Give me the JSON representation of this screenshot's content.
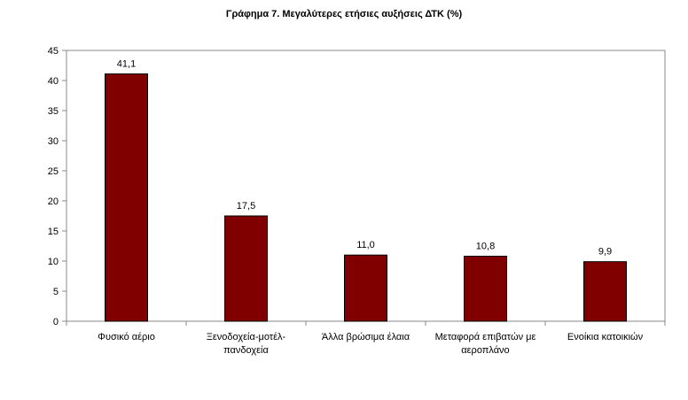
{
  "chart_data": {
    "type": "bar",
    "title": "Γράφημα 7. Μεγαλύτερες ετήσιες αυξήσεις ΔΤΚ (%)",
    "categories": [
      [
        "Φυσικό αέριο"
      ],
      [
        "Ξενοδοχεία-μοτέλ-",
        "πανδοχεία"
      ],
      [
        "Άλλα βρώσιμα έλαια"
      ],
      [
        "Μεταφορά επιβατών με",
        "αεροπλάνο"
      ],
      [
        "Ενοίκια κατοικιών"
      ]
    ],
    "values": [
      41.1,
      17.5,
      11.0,
      10.8,
      9.9
    ],
    "value_labels": [
      "41,1",
      "17,5",
      "11,0",
      "10,8",
      "9,9"
    ],
    "yticks": [
      0,
      5,
      10,
      15,
      20,
      25,
      30,
      35,
      40,
      45
    ],
    "ylim": [
      0,
      45
    ],
    "grid": false,
    "legend": "none",
    "bar_color": "#800000",
    "xlabel": "",
    "ylabel": ""
  }
}
